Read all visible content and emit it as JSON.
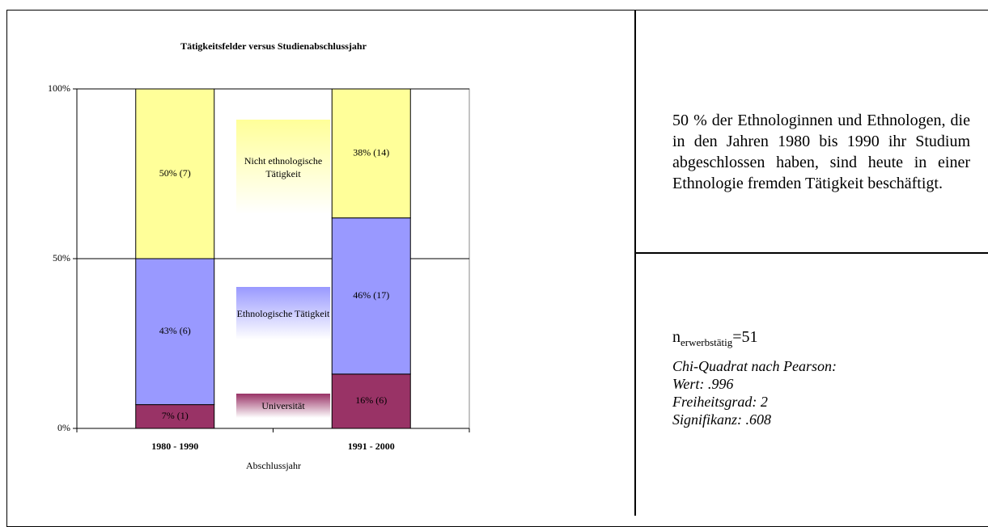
{
  "chart_data": {
    "type": "stacked_bar",
    "title": "Tätigkeitsfelder versus Studienabschlussjahr",
    "x_label": "Abschlussjahr",
    "categories": [
      "1980 - 1990",
      "1991 - 2000"
    ],
    "series": [
      {
        "name": "Universität",
        "color": "#993366",
        "values": [
          7,
          16
        ],
        "value_labels": [
          "7%  (1)",
          "16%  (6)"
        ]
      },
      {
        "name": "Ethnologische Tätigkeit",
        "color": "#9999ff",
        "values": [
          43,
          46
        ],
        "value_labels": [
          "43%  (6)",
          "46%  (17)"
        ]
      },
      {
        "name": "Nicht ethnologische Tätigkeit",
        "color": "#ffff99",
        "values": [
          50,
          38
        ],
        "value_labels": [
          "50%  (7)",
          "38%  (14)"
        ]
      }
    ],
    "ylim": [
      0,
      100
    ],
    "yticks": [
      {
        "value": 0,
        "label": "0%"
      },
      {
        "value": 50,
        "label": "50%"
      },
      {
        "value": 100,
        "label": "100%"
      }
    ],
    "grid": true
  },
  "summary": "50 % der Ethnologinnen und Ethnologen, die in den Jahren 1980 bis 1990 ihr Studium abgeschlossen haben, sind heute in einer Ethnologie fremden Tätigkeit beschäftigt.",
  "stats": {
    "n": "n",
    "n_subscript": "erwerbstätig",
    "n_value": "=51",
    "lines": [
      "Chi-Quadrat nach Pearson:",
      "Wert: .996",
      "Freiheitsgrad: 2",
      "Signifikanz: .608"
    ]
  }
}
